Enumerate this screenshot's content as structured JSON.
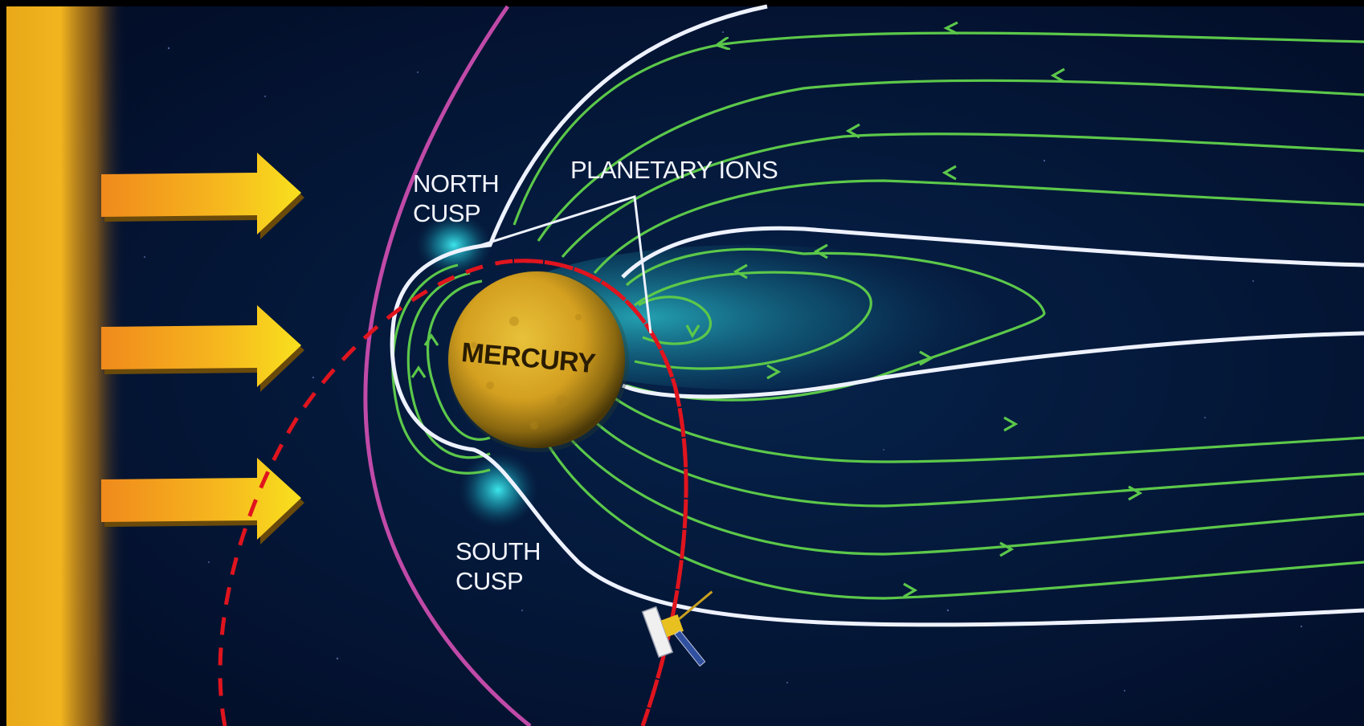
{
  "labels": {
    "north_cusp": [
      "NORTH",
      "CUSP"
    ],
    "south_cusp": [
      "SOUTH",
      "CUSP"
    ],
    "planetary_ions": "PLANETARY IONS",
    "planet": "MERCURY"
  },
  "colors": {
    "background": "#020b26",
    "sun": "#f2b21e",
    "solar_wind_arrow": "#f6c91f",
    "bow_shock": "#c04aa8",
    "magnetopause": "#ffffff",
    "field_lines": "#5cc84a",
    "spacecraft_orbit": "#e0141e",
    "cusp_glow": "#30e0e8",
    "planet": "#d8a820"
  },
  "icons": [
    "sun-glow",
    "solar-wind-arrow",
    "spacecraft-icon"
  ]
}
